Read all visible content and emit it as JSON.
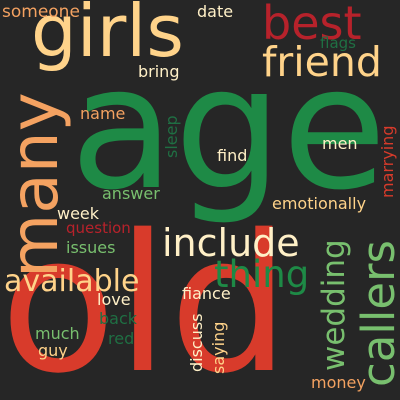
{
  "colors": {
    "background": "#262626",
    "red": "#d83b2b",
    "green": "#1e8a46",
    "orange": "#f4a261",
    "gold": "#ffd38a",
    "lightgreen": "#78bf6e",
    "darkred": "#b7222b",
    "darkgreen": "#1f6f43",
    "cream": "#fff0c7"
  },
  "words": {
    "age": "age",
    "old": "old",
    "girls": "girls",
    "many": "many",
    "best": "best",
    "friend": "friend",
    "include": "include",
    "thing": "thing",
    "callers": "callers",
    "wedding": "wedding",
    "available": "available",
    "someone": "someone",
    "date": "date",
    "men": "men",
    "flags": "flags",
    "bring": "bring",
    "name": "name",
    "sleep": "sleep",
    "find": "find",
    "marrying": "marrying",
    "answer": "answer",
    "emotionally": "emotionally",
    "week": "week",
    "question": "question",
    "issues": "issues",
    "fiance": "fiance",
    "love": "love",
    "discuss": "discuss",
    "saying": "saying",
    "much": "much",
    "back": "back",
    "red": "red",
    "guy": "guy",
    "money": "money"
  }
}
